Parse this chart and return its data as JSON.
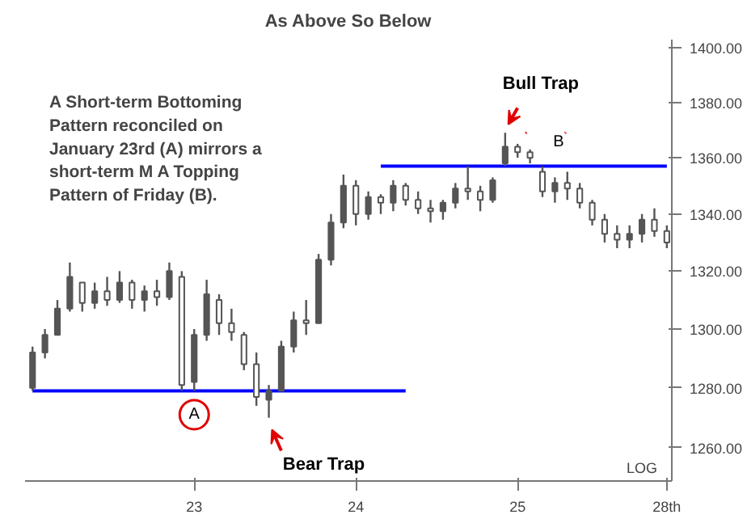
{
  "chart_data": {
    "type": "candlestick",
    "title": "As Above So Below",
    "categories": [
      null,
      null,
      null,
      null,
      null,
      null,
      null,
      null,
      null,
      null,
      null,
      null,
      null,
      "23",
      null,
      null,
      null,
      null,
      null,
      null,
      null,
      null,
      null,
      null,
      null,
      null,
      "24",
      null,
      null,
      null,
      null,
      null,
      null,
      null,
      null,
      null,
      null,
      null,
      null,
      "25",
      null,
      null,
      null,
      null,
      null,
      null,
      null,
      null,
      null,
      null,
      null,
      "28th"
    ],
    "ohlc": [
      [
        1280,
        1294,
        1279,
        1292
      ],
      [
        1292,
        1300,
        1290,
        1298
      ],
      [
        1298,
        1310,
        1298,
        1307
      ],
      [
        1307,
        1323,
        1306,
        1318
      ],
      [
        1316,
        1316,
        1306,
        1309
      ],
      [
        1309,
        1316,
        1307,
        1313
      ],
      [
        1313,
        1318,
        1308,
        1310
      ],
      [
        1310,
        1320,
        1309,
        1316
      ],
      [
        1316,
        1317,
        1307,
        1310
      ],
      [
        1310,
        1315,
        1306,
        1313
      ],
      [
        1313,
        1317,
        1308,
        1311
      ],
      [
        1311,
        1323,
        1310,
        1320
      ],
      [
        1318,
        1320,
        1279,
        1281
      ],
      [
        1282,
        1300,
        1279,
        1298
      ],
      [
        1298,
        1317,
        1296,
        1312
      ],
      [
        1310,
        1312,
        1298,
        1302
      ],
      [
        1302,
        1307,
        1296,
        1299
      ],
      [
        1298,
        1299,
        1286,
        1288
      ],
      [
        1288,
        1292,
        1274,
        1277
      ],
      [
        1276,
        1281,
        1270,
        1279
      ],
      [
        1279,
        1296,
        1279,
        1294
      ],
      [
        1294,
        1306,
        1292,
        1303
      ],
      [
        1303,
        1310,
        1298,
        1302
      ],
      [
        1302,
        1326,
        1302,
        1324
      ],
      [
        1324,
        1340,
        1322,
        1337
      ],
      [
        1337,
        1354,
        1335,
        1350
      ],
      [
        1350,
        1352,
        1336,
        1340
      ],
      [
        1340,
        1348,
        1338,
        1346
      ],
      [
        1346,
        1347,
        1340,
        1344
      ],
      [
        1344,
        1352,
        1341,
        1350
      ],
      [
        1350,
        1351,
        1343,
        1345
      ],
      [
        1345,
        1348,
        1340,
        1342
      ],
      [
        1342,
        1345,
        1337,
        1341
      ],
      [
        1341,
        1345,
        1338,
        1344
      ],
      [
        1344,
        1351,
        1342,
        1349
      ],
      [
        1349,
        1357,
        1345,
        1348
      ],
      [
        1348,
        1350,
        1341,
        1345
      ],
      [
        1345,
        1353,
        1344,
        1352
      ],
      [
        1358,
        1369,
        1357,
        1364
      ],
      [
        1364,
        1365,
        1360,
        1362
      ],
      [
        1362,
        1363,
        1358,
        1360
      ],
      [
        1355,
        1357,
        1346,
        1348
      ],
      [
        1348,
        1353,
        1344,
        1351
      ],
      [
        1351,
        1355,
        1345,
        1349
      ],
      [
        1349,
        1351,
        1342,
        1344
      ],
      [
        1344,
        1345,
        1336,
        1338
      ],
      [
        1338,
        1340,
        1330,
        1333
      ],
      [
        1333,
        1336,
        1328,
        1331
      ],
      [
        1331,
        1336,
        1328,
        1333
      ],
      [
        1333,
        1340,
        1330,
        1338
      ],
      [
        1338,
        1342,
        1332,
        1334
      ],
      [
        1334,
        1336,
        1328,
        1330
      ]
    ],
    "color": "#555555",
    "series": [
      {
        "type": "line",
        "color": "#0000ff",
        "values": [
          1279,
          1279,
          1279,
          1279,
          1279,
          1279,
          1279,
          1279,
          1279,
          1279,
          1279,
          1279,
          1279,
          1279,
          1279,
          1279,
          1279,
          1279,
          1279,
          1279,
          1279,
          1279,
          1279,
          1279,
          1279,
          1279,
          1279,
          1279,
          1279,
          1279,
          1279,
          null,
          null,
          null,
          null,
          null,
          null,
          null,
          null,
          null,
          null,
          null,
          null,
          null,
          null,
          null,
          null,
          null,
          null,
          null,
          null,
          null
        ]
      },
      {
        "type": "line",
        "color": "#0000ff",
        "values": [
          null,
          null,
          null,
          null,
          null,
          null,
          null,
          null,
          null,
          null,
          null,
          null,
          null,
          null,
          null,
          null,
          null,
          null,
          null,
          null,
          null,
          null,
          null,
          null,
          null,
          null,
          null,
          null,
          1357,
          1357,
          1357,
          1357,
          1357,
          1357,
          1357,
          1357,
          1357,
          1357,
          1357,
          1357,
          1357,
          1357,
          1357,
          1357,
          1357,
          1357,
          1357,
          1357,
          1357,
          1357,
          1357,
          1357
        ]
      }
    ],
    "ylim": [
      1249,
      1403
    ],
    "log": true,
    "yticks": [
      {
        "value": 1260,
        "label": "1260.00"
      },
      {
        "value": 1280,
        "label": "1280.00"
      },
      {
        "value": 1300,
        "label": "1300.00"
      },
      {
        "value": 1320,
        "label": "1320.00"
      },
      {
        "value": 1340,
        "label": "1340.00"
      },
      {
        "value": 1360,
        "label": "1360.00"
      },
      {
        "value": 1380,
        "label": "1380.00"
      },
      {
        "value": 1400,
        "label": "1400.00"
      }
    ],
    "grid": false,
    "annotations": [
      "A Short-term Bottoming Pattern reconciled on January 23rd (A) mirrors a short-term M A Topping Pattern of Friday (B).",
      "LOG",
      "B",
      "Bull Trap",
      "Bear Trap",
      {
        "text": "A",
        "x": "23",
        "y": 1271
      }
    ]
  }
}
